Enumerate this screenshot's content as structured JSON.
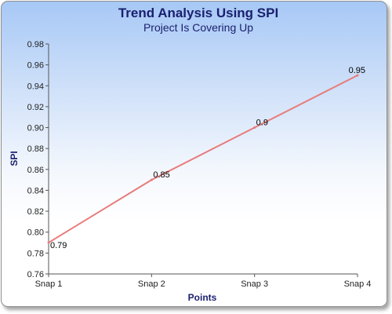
{
  "chart_data": {
    "type": "line",
    "title": "Trend Analysis Using SPI",
    "subtitle": "Project Is Covering Up",
    "xlabel": "Points",
    "ylabel": "SPI",
    "categories": [
      "Snap 1",
      "Snap 2",
      "Snap 3",
      "Snap 4"
    ],
    "series": [
      {
        "values": [
          0.79,
          0.85,
          0.9,
          0.95
        ],
        "data_labels": [
          "0.79",
          "0.85",
          "0.9",
          "0.95"
        ],
        "color": "#e87b7b"
      }
    ],
    "ylim": [
      0.76,
      0.98
    ],
    "yticks": [
      "0.76",
      "0.78",
      "0.80",
      "0.82",
      "0.84",
      "0.86",
      "0.88",
      "0.90",
      "0.92",
      "0.94",
      "0.96",
      "0.98"
    ],
    "grid": false,
    "legend": "none"
  }
}
